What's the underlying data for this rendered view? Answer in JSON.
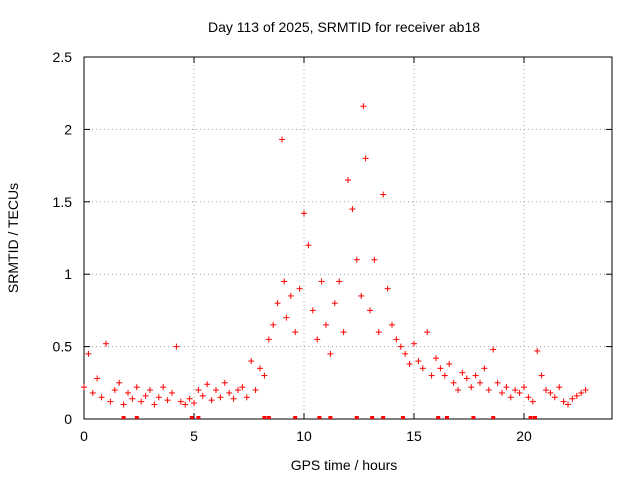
{
  "chart_data": {
    "type": "scatter",
    "title": "Day 113 of 2025, SRMTID for receiver ab18",
    "xlabel": "GPS time / hours",
    "ylabel": "SRMTID / TECUs",
    "xlim": [
      0,
      24
    ],
    "ylim": [
      0,
      2.5
    ],
    "xticks": [
      0,
      5,
      10,
      15,
      20
    ],
    "xtick_labels": [
      "0",
      "5",
      "10",
      "15",
      "20"
    ],
    "yticks": [
      0,
      0.5,
      1,
      1.5,
      2,
      2.5
    ],
    "ytick_labels": [
      "0",
      "0.5",
      "1",
      "1.5",
      "2",
      "2.5"
    ],
    "grid": true,
    "marker": "+",
    "series_color": "#ff0000",
    "series": [
      {
        "name": "SRMTID",
        "x": [
          0.0,
          0.2,
          0.4,
          0.6,
          0.8,
          1.0,
          1.2,
          1.4,
          1.6,
          1.8,
          2.0,
          2.2,
          2.4,
          2.6,
          2.8,
          3.0,
          3.2,
          3.4,
          3.6,
          3.8,
          4.0,
          4.2,
          4.4,
          4.6,
          4.8,
          5.0,
          5.2,
          5.4,
          5.6,
          5.8,
          6.0,
          6.2,
          6.4,
          6.6,
          6.8,
          7.0,
          7.2,
          7.4,
          7.6,
          7.8,
          8.0,
          8.2,
          8.4,
          8.6,
          8.8,
          9.0,
          9.1,
          9.2,
          9.4,
          9.6,
          9.8,
          10.0,
          10.2,
          10.4,
          10.6,
          10.8,
          11.0,
          11.2,
          11.4,
          11.6,
          11.8,
          12.0,
          12.2,
          12.4,
          12.6,
          12.7,
          12.8,
          13.0,
          13.2,
          13.4,
          13.6,
          13.8,
          14.0,
          14.2,
          14.4,
          14.6,
          14.8,
          15.0,
          15.2,
          15.4,
          15.6,
          15.8,
          16.0,
          16.2,
          16.4,
          16.6,
          16.8,
          17.0,
          17.2,
          17.4,
          17.6,
          17.8,
          18.0,
          18.2,
          18.4,
          18.6,
          18.8,
          19.0,
          19.2,
          19.4,
          19.6,
          19.8,
          20.0,
          20.2,
          20.4,
          20.6,
          20.8,
          21.0,
          21.2,
          21.4,
          21.6,
          21.8,
          22.0,
          22.2,
          22.4,
          22.6,
          22.8
        ],
        "y": [
          0.22,
          0.45,
          0.18,
          0.28,
          0.15,
          0.52,
          0.12,
          0.2,
          0.25,
          0.1,
          0.18,
          0.14,
          0.22,
          0.12,
          0.16,
          0.2,
          0.1,
          0.15,
          0.22,
          0.13,
          0.18,
          0.5,
          0.12,
          0.1,
          0.14,
          0.11,
          0.2,
          0.16,
          0.24,
          0.13,
          0.2,
          0.15,
          0.25,
          0.18,
          0.14,
          0.2,
          0.22,
          0.15,
          0.4,
          0.2,
          0.35,
          0.3,
          0.55,
          0.65,
          0.8,
          1.93,
          0.95,
          0.7,
          0.85,
          0.6,
          0.9,
          1.42,
          1.2,
          0.75,
          0.55,
          0.95,
          0.65,
          0.45,
          0.8,
          0.95,
          0.6,
          1.65,
          1.45,
          1.1,
          0.85,
          2.16,
          1.8,
          0.75,
          1.1,
          0.6,
          1.55,
          0.9,
          0.65,
          0.55,
          0.5,
          0.45,
          0.38,
          0.52,
          0.4,
          0.35,
          0.6,
          0.3,
          0.42,
          0.35,
          0.3,
          0.38,
          0.25,
          0.2,
          0.32,
          0.28,
          0.22,
          0.3,
          0.25,
          0.35,
          0.2,
          0.48,
          0.25,
          0.18,
          0.22,
          0.15,
          0.2,
          0.18,
          0.22,
          0.15,
          0.12,
          0.47,
          0.3,
          0.2,
          0.18,
          0.15,
          0.22,
          0.12,
          0.1,
          0.14,
          0.16,
          0.18,
          0.2
        ],
        "zero_markers_x": [
          1.8,
          2.4,
          4.9,
          5.2,
          8.2,
          8.4,
          9.6,
          10.7,
          11.2,
          12.4,
          13.1,
          13.6,
          14.5,
          16.1,
          16.5,
          17.7,
          18.6,
          20.3,
          20.5
        ]
      }
    ]
  }
}
